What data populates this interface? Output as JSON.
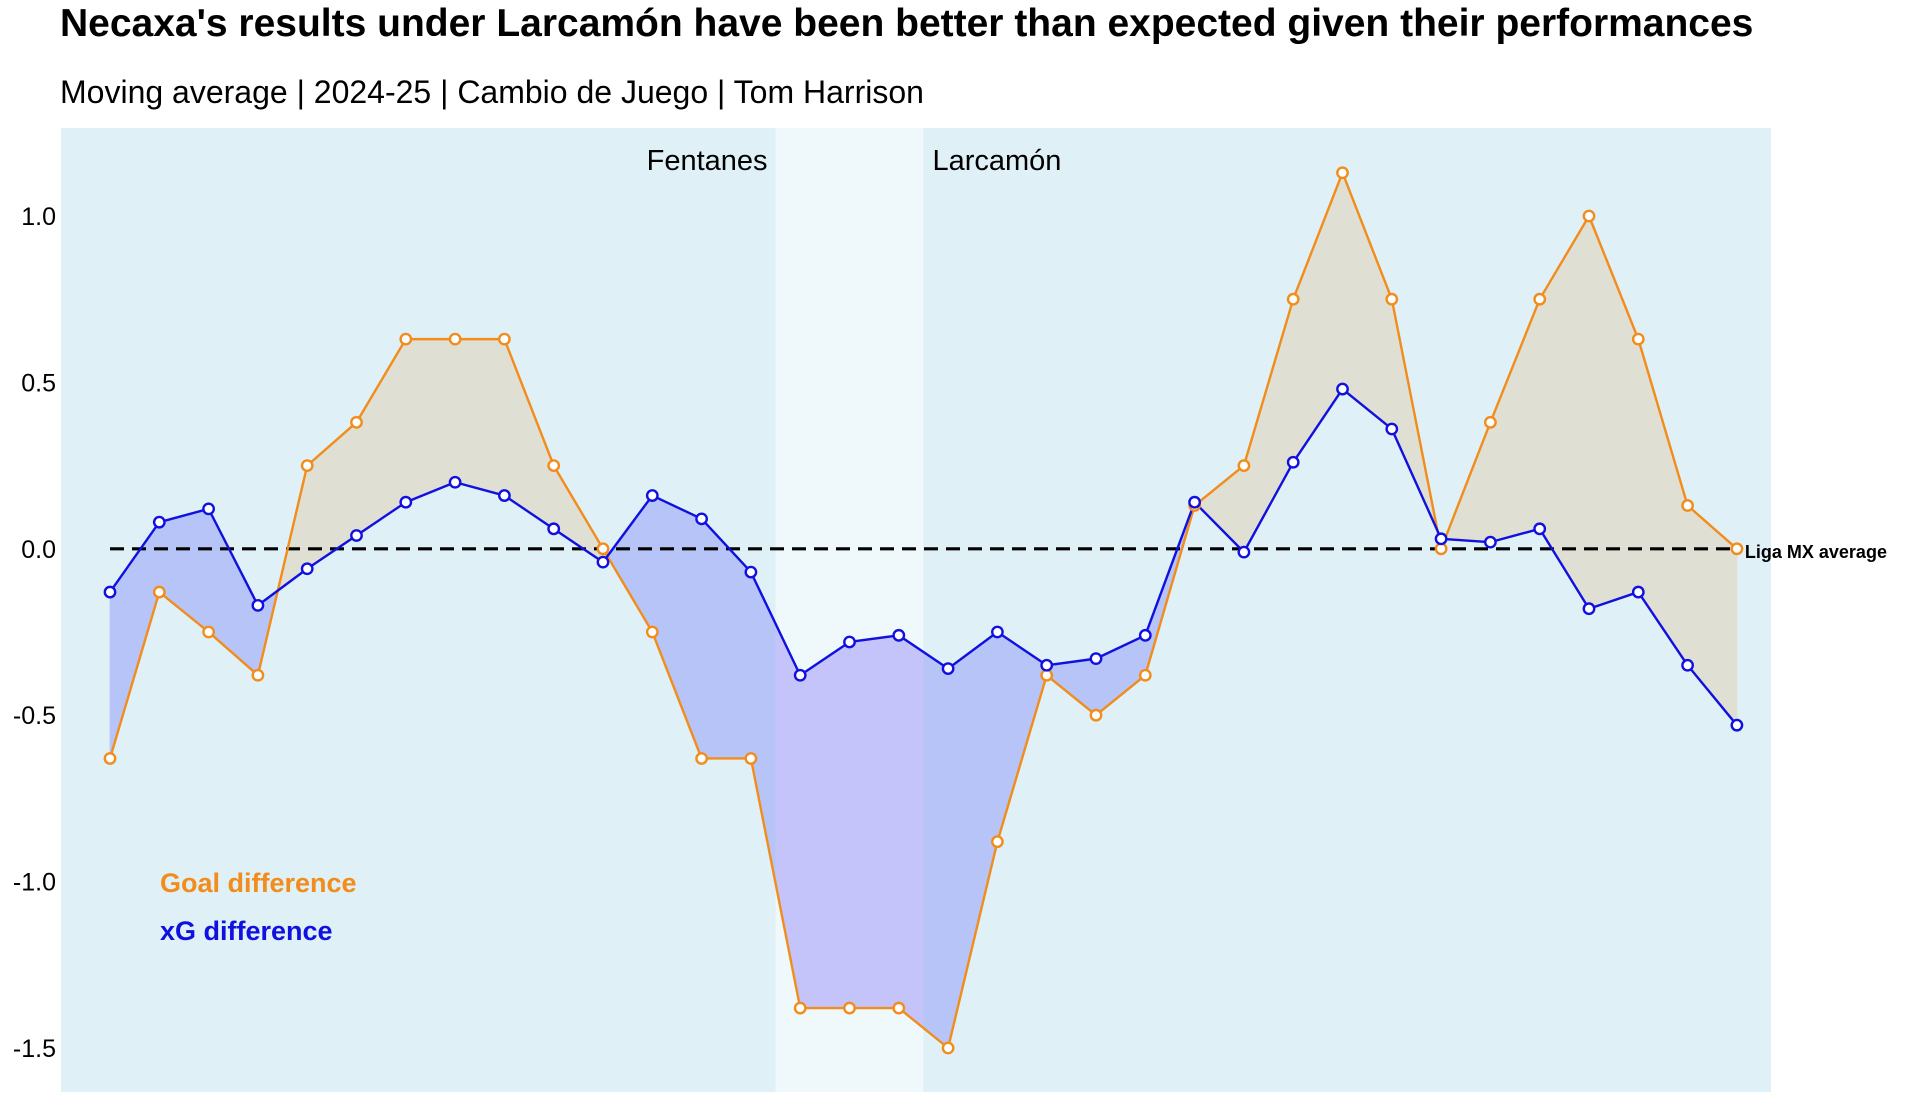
{
  "title": "Necaxa's results under Larcamón have been better than expected given their performances",
  "subtitle": "Moving average | 2024-25 | Cambio de Juego | Tom Harrison",
  "colors": {
    "goal": "#f28c1a",
    "xg": "#1010e0",
    "panel_bg": "#dff0f7",
    "gap_bg": "#eff8fb",
    "fill_over": "#e0dfd3",
    "fill_under": "#b6c4f7",
    "fill_under_gap": "#c4c4fa"
  },
  "chart_data": {
    "type": "line",
    "x": [
      1,
      2,
      3,
      4,
      5,
      6,
      7,
      8,
      9,
      10,
      11,
      12,
      13,
      14,
      15,
      16,
      17,
      18,
      19,
      20,
      21,
      22,
      23,
      24,
      25,
      26,
      27,
      28,
      29,
      30,
      31,
      32,
      33,
      34
    ],
    "ylim": [
      -1.6,
      1.26
    ],
    "yticks": [
      "1.0",
      "0.5",
      "0.0",
      "-0.5",
      "-1.0",
      "-1.5"
    ],
    "ytick_values": [
      1.0,
      0.5,
      0.0,
      -0.5,
      -1.0,
      -1.5
    ],
    "grid": false,
    "legend_placement": "bottom-left",
    "series": [
      {
        "name": "Goal difference",
        "values": [
          -0.63,
          -0.13,
          -0.25,
          -0.38,
          0.25,
          0.38,
          0.63,
          0.63,
          0.63,
          0.25,
          0.0,
          -0.25,
          -0.63,
          -0.63,
          -1.38,
          -1.38,
          -1.38,
          -1.5,
          -0.88,
          -0.38,
          -0.5,
          -0.38,
          0.13,
          0.25,
          0.75,
          1.13,
          0.75,
          0.0,
          0.38,
          0.75,
          1.0,
          0.63,
          0.13,
          0.0
        ]
      },
      {
        "name": "xG difference",
        "values": [
          -0.13,
          0.08,
          0.12,
          -0.17,
          -0.06,
          0.04,
          0.14,
          0.2,
          0.16,
          0.06,
          -0.04,
          0.16,
          0.09,
          -0.07,
          -0.38,
          -0.28,
          -0.26,
          -0.36,
          -0.25,
          -0.35,
          -0.33,
          -0.26,
          0.14,
          -0.01,
          0.26,
          0.48,
          0.36,
          0.03,
          0.02,
          0.06,
          -0.18,
          -0.13,
          -0.35,
          -0.53
        ]
      }
    ],
    "reference_line": {
      "y": 0.0,
      "label": "Liga MX average"
    },
    "periods": [
      {
        "label": "Fentanes",
        "end_x": 14.5
      },
      {
        "label": "Larcamón",
        "start_x": 17.5
      }
    ]
  }
}
